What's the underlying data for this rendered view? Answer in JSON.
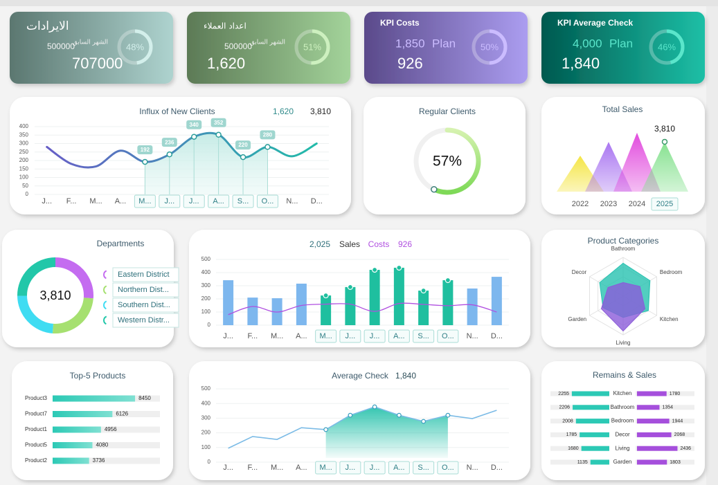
{
  "kpis": [
    {
      "title": "الايرادات",
      "plan_caption": "الشهر السابق",
      "plan": 500000,
      "value": 707000,
      "percent": 48,
      "percent_label": "48%",
      "colors": [
        "#5b7770",
        "#aed3cf"
      ],
      "ring_color": "#d3efeb"
    },
    {
      "title": "اعداد العملاء",
      "plan_caption": "الشهر السابق",
      "plan": 500000,
      "value": 1620,
      "value_label": "1,620",
      "percent": 51,
      "percent_label": "51%",
      "colors": [
        "#5c7a56",
        "#a3d39a"
      ],
      "ring_color": "#cdf0bf"
    },
    {
      "title": "KPI Costs",
      "plan": 1850,
      "plan_label": "1,850",
      "plan_caption": "Plan",
      "value": 926,
      "percent": 50,
      "percent_label": "50%",
      "colors": [
        "#5a4a8a",
        "#ab9df0"
      ],
      "ring_color": "#cbbcff"
    },
    {
      "title": "KPI Average Check",
      "plan": 4000,
      "plan_label": "4,000",
      "plan_caption": "Plan",
      "value": 1840,
      "value_label": "1,840",
      "percent": 46,
      "percent_label": "46%",
      "colors": [
        "#00594f",
        "#1dbfa6"
      ],
      "ring_color": "#5ae6cb"
    }
  ],
  "influx": {
    "title": "Influx of New Clients",
    "summary": [
      {
        "value": 1620,
        "label": "1,620"
      },
      {
        "value": 3810,
        "label": "3,810"
      }
    ],
    "categories": [
      "J...",
      "F...",
      "M...",
      "A...",
      "M...",
      "J...",
      "J...",
      "A...",
      "S...",
      "O...",
      "N...",
      "D..."
    ],
    "values": [
      280,
      180,
      165,
      258,
      192,
      236,
      340,
      352,
      220,
      280,
      225,
      300
    ],
    "highlight": [
      false,
      false,
      false,
      false,
      true,
      true,
      true,
      true,
      true,
      true,
      false,
      false
    ],
    "ylim": [
      0,
      400
    ],
    "yticks": [
      0,
      50,
      100,
      150,
      200,
      250,
      300,
      350,
      400
    ],
    "grid": true,
    "colors": [
      "#6a5ac8",
      "#1fbfa8"
    ]
  },
  "regular_clients": {
    "title": "Regular Clients",
    "value": 57,
    "value_label": "57%",
    "colors": [
      "#d6f2b0",
      "#7ed957"
    ]
  },
  "total_sales": {
    "title": "Total Sales",
    "categories": [
      "2022",
      "2023",
      "2024",
      "2025"
    ],
    "values": [
      2750,
      3800,
      4500,
      3810
    ],
    "value_labels": [
      null,
      null,
      null,
      "3,810"
    ],
    "highlight": [
      false,
      false,
      false,
      true
    ],
    "ylim": [
      0,
      4600
    ],
    "colors": [
      "#f4e43c",
      "#a56ff0",
      "#e043dc",
      "#80e08a"
    ]
  },
  "departments": {
    "title": "Departments",
    "total": {
      "value": 3810,
      "label": "3,810"
    },
    "categories": [
      "Eastern District",
      "Northern Dist...",
      "Southern Dist...",
      "Western Distr..."
    ],
    "values": [
      1000,
      950,
      900,
      960
    ],
    "colors": [
      "#c46cf0",
      "#a6e070",
      "#3fdcf2",
      "#22c7a9"
    ]
  },
  "sales_costs": {
    "categories": [
      "J...",
      "F...",
      "M...",
      "A...",
      "M...",
      "J...",
      "J...",
      "A...",
      "S...",
      "O...",
      "N...",
      "D..."
    ],
    "highlight": [
      false,
      false,
      false,
      false,
      true,
      true,
      true,
      true,
      true,
      true,
      false,
      false
    ],
    "series": [
      {
        "name": "Sales",
        "total": 2025,
        "total_label": "2,025",
        "color": "#7db7ee",
        "highlight_color": "#1fbf9f",
        "values": [
          342,
          210,
          205,
          316,
          226,
          290,
          421,
          437,
          263,
          342,
          279,
          368
        ]
      },
      {
        "name": "Costs",
        "total": 926,
        "color": "#b04fe0",
        "values": [
          80,
          142,
          100,
          150,
          160,
          160,
          105,
          165,
          158,
          148,
          155,
          100
        ]
      }
    ],
    "ylim": [
      0,
      500
    ],
    "yticks": [
      0,
      100,
      200,
      300,
      400,
      500
    ],
    "grid": true
  },
  "product_categories": {
    "title": "Product Categories",
    "categories": [
      "Bathroom",
      "Bedroom",
      "Kitchen",
      "Living",
      "Garden",
      "Decor"
    ],
    "rlim": [
      0,
      100
    ],
    "series": [
      {
        "color": "#27c2b0",
        "values": [
          85,
          80,
          75,
          55,
          60,
          70
        ]
      },
      {
        "color": "#8b5bd9",
        "values": [
          35,
          50,
          65,
          90,
          65,
          45
        ]
      }
    ]
  },
  "top_products": {
    "title": "Top-5 Products",
    "categories": [
      "Product3",
      "Product7",
      "Product1",
      "Product5",
      "Product2"
    ],
    "values": [
      8450,
      6126,
      4956,
      4080,
      3736
    ],
    "xlim": [
      0,
      11000
    ],
    "color": "#2cc9b5"
  },
  "average_check": {
    "title": "Average Check",
    "summary": {
      "value": 1840,
      "label": "1,840"
    },
    "categories": [
      "J...",
      "F...",
      "M...",
      "A...",
      "M...",
      "J...",
      "J...",
      "A...",
      "S...",
      "O...",
      "N...",
      "D..."
    ],
    "values": [
      95,
      175,
      155,
      235,
      222,
      320,
      377,
      320,
      278,
      320,
      297,
      354
    ],
    "highlight": [
      false,
      false,
      false,
      false,
      true,
      true,
      true,
      true,
      true,
      true,
      false,
      false
    ],
    "ylim": [
      0,
      500
    ],
    "yticks": [
      0,
      100,
      200,
      300,
      400,
      500
    ],
    "grid": true,
    "color": "#7bbbe6",
    "area_color": "#1fbfa8"
  },
  "remains_sales": {
    "title": "Remains & Sales",
    "categories": [
      "Kitchen",
      "Bathroom",
      "Bedroom",
      "Decor",
      "Living",
      "Garden"
    ],
    "xlim": [
      0,
      2500
    ],
    "series": [
      {
        "color": "#2cc9b5",
        "values": [
          2255,
          2206,
          2008,
          1785,
          1680,
          1135
        ]
      },
      {
        "color": "#a54fdc",
        "values": [
          1780,
          1354,
          1944,
          2068,
          2436,
          1803
        ]
      }
    ]
  }
}
